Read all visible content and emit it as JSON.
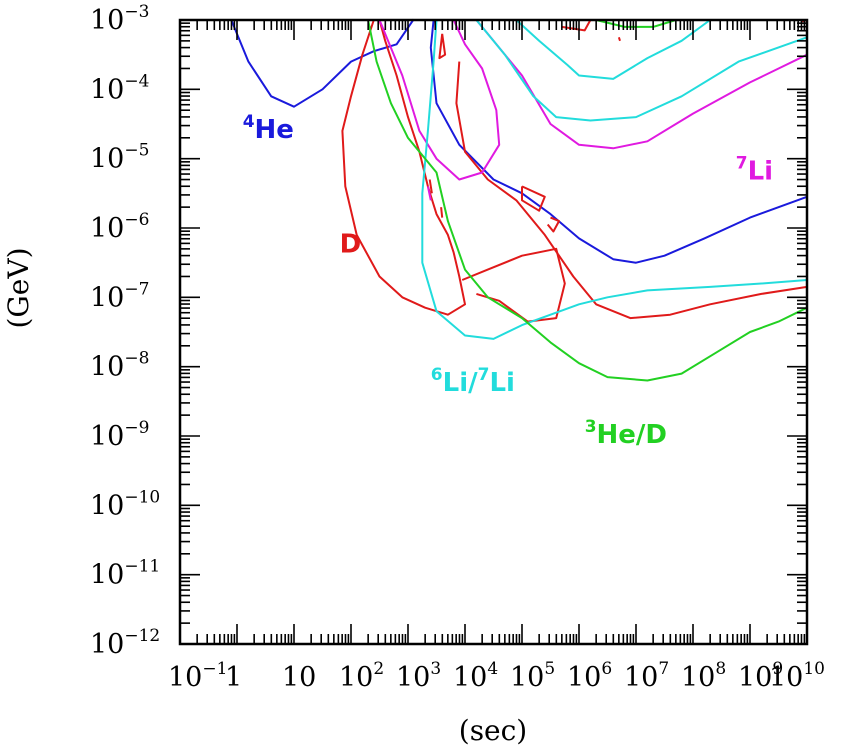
{
  "chart_data": {
    "type": "line",
    "title": "",
    "xlabel": "(sec)",
    "ylabel": "(GeV)",
    "x_scale": "log",
    "y_scale": "log",
    "xlim_exp": [
      -1,
      10
    ],
    "ylim_exp": [
      -12,
      -3
    ],
    "grid": false,
    "x_tick_labels": [
      {
        "exp": -1,
        "base": "10",
        "sup": "−1"
      },
      {
        "exp": 0,
        "base": "1",
        "sup": ""
      },
      {
        "exp": 1,
        "base": "10",
        "sup": ""
      },
      {
        "exp": 2,
        "base": "10",
        "sup": "2"
      },
      {
        "exp": 3,
        "base": "10",
        "sup": "3"
      },
      {
        "exp": 4,
        "base": "10",
        "sup": "4"
      },
      {
        "exp": 5,
        "base": "10",
        "sup": "5"
      },
      {
        "exp": 6,
        "base": "10",
        "sup": "6"
      },
      {
        "exp": 7,
        "base": "10",
        "sup": "7"
      },
      {
        "exp": 8,
        "base": "10",
        "sup": "8"
      },
      {
        "exp": 9,
        "base": "10",
        "sup": "9"
      },
      {
        "exp": 10,
        "base": "10",
        "sup": "10"
      }
    ],
    "y_tick_labels": [
      {
        "exp": -3,
        "base": "10",
        "sup": "−3"
      },
      {
        "exp": -4,
        "base": "10",
        "sup": "−4"
      },
      {
        "exp": -5,
        "base": "10",
        "sup": "−5"
      },
      {
        "exp": -6,
        "base": "10",
        "sup": "−6"
      },
      {
        "exp": -7,
        "base": "10",
        "sup": "−7"
      },
      {
        "exp": -8,
        "base": "10",
        "sup": "−8"
      },
      {
        "exp": -9,
        "base": "10",
        "sup": "−9"
      },
      {
        "exp": -10,
        "base": "10",
        "sup": "−10"
      },
      {
        "exp": -11,
        "base": "10",
        "sup": "−11"
      },
      {
        "exp": -12,
        "base": "10",
        "sup": "−12"
      }
    ],
    "labels": [
      {
        "key": "he4",
        "sup": "4",
        "text": "He",
        "color": "#1a1adc",
        "at": [
          0.1,
          -4.7
        ]
      },
      {
        "key": "d",
        "sup": "",
        "text": "D",
        "color": "#e01a1a",
        "at": [
          1.8,
          -6.35
        ]
      },
      {
        "key": "li7",
        "sup": "7",
        "text": "Li",
        "color": "#e01ae0",
        "at": [
          8.75,
          -5.3
        ]
      },
      {
        "key": "li6li7",
        "sup": "6",
        "text": "Li/",
        "sup2": "7",
        "text2": "Li",
        "color": "#22dcdc",
        "at": [
          3.4,
          -8.35
        ]
      },
      {
        "key": "he3d",
        "sup": "3",
        "text": "He/D",
        "color": "#22d022",
        "at": [
          6.1,
          -9.1
        ]
      }
    ],
    "series": [
      {
        "key": "he4",
        "color": "#1a1adc",
        "paths": [
          [
            [
              -0.1,
              -3.0
            ],
            [
              0.2,
              -3.6
            ],
            [
              0.6,
              -4.1
            ],
            [
              1.0,
              -4.25
            ],
            [
              1.5,
              -4.0
            ],
            [
              2.0,
              -3.6
            ],
            [
              2.4,
              -3.45
            ],
            [
              2.8,
              -3.35
            ],
            [
              3.1,
              -2.99
            ]
          ],
          [
            [
              3.45,
              -3.0
            ],
            [
              3.4,
              -3.4
            ],
            [
              3.5,
              -4.2
            ],
            [
              3.9,
              -4.8
            ],
            [
              4.5,
              -5.3
            ],
            [
              5.0,
              -5.5
            ],
            [
              5.5,
              -5.8
            ],
            [
              6.0,
              -6.15
            ],
            [
              6.6,
              -6.45
            ],
            [
              7.0,
              -6.5
            ],
            [
              7.5,
              -6.4
            ],
            [
              8.2,
              -6.15
            ],
            [
              9.0,
              -5.85
            ],
            [
              10.0,
              -5.55
            ]
          ]
        ]
      },
      {
        "key": "d",
        "color": "#e01a1a",
        "paths": [
          [
            [
              2.4,
              -3.0
            ],
            [
              2.2,
              -3.5
            ],
            [
              2.0,
              -4.1
            ],
            [
              1.85,
              -4.6
            ],
            [
              1.9,
              -5.4
            ],
            [
              2.1,
              -6.1
            ],
            [
              2.5,
              -6.7
            ],
            [
              2.9,
              -7.0
            ],
            [
              3.3,
              -7.15
            ],
            [
              3.7,
              -7.25
            ],
            [
              4.0,
              -7.1
            ],
            [
              3.9,
              -6.7
            ],
            [
              3.8,
              -6.35
            ],
            [
              3.7,
              -6.1
            ],
            [
              3.5,
              -5.8
            ],
            [
              3.35,
              -5.4
            ],
            [
              3.2,
              -4.9
            ],
            [
              3.0,
              -4.4
            ],
            [
              2.8,
              -3.8
            ],
            [
              2.6,
              -3.3
            ],
            [
              2.5,
              -3.0
            ]
          ],
          [
            [
              3.9,
              -3.6
            ],
            [
              3.85,
              -4.2
            ],
            [
              4.0,
              -4.9
            ],
            [
              4.4,
              -5.3
            ],
            [
              4.9,
              -5.6
            ],
            [
              5.4,
              -6.1
            ],
            [
              5.9,
              -6.7
            ],
            [
              6.3,
              -7.1
            ],
            [
              6.9,
              -7.3
            ],
            [
              7.6,
              -7.25
            ],
            [
              8.3,
              -7.1
            ],
            [
              9.2,
              -6.95
            ],
            [
              10.0,
              -6.85
            ]
          ],
          [
            [
              3.95,
              -6.75
            ],
            [
              4.4,
              -6.6
            ],
            [
              5.0,
              -6.4
            ],
            [
              5.6,
              -6.3
            ],
            [
              5.75,
              -6.8
            ],
            [
              5.6,
              -7.3
            ],
            [
              5.1,
              -7.35
            ],
            [
              4.6,
              -7.05
            ],
            [
              4.2,
              -6.95
            ]
          ],
          [
            [
              5.0,
              -5.4
            ],
            [
              5.4,
              -5.55
            ],
            [
              5.3,
              -5.75
            ],
            [
              5.0,
              -5.6
            ],
            [
              5.0,
              -5.4
            ]
          ],
          [
            [
              5.5,
              -5.85
            ],
            [
              5.65,
              -5.9
            ],
            [
              5.55,
              -6.05
            ],
            [
              5.45,
              -5.95
            ]
          ],
          [
            [
              3.6,
              -3.2
            ],
            [
              3.65,
              -3.5
            ],
            [
              3.55,
              -3.55
            ],
            [
              3.6,
              -3.2
            ]
          ],
          [
            [
              5.7,
              -3.1
            ],
            [
              6.1,
              -3.15
            ],
            [
              6.2,
              -3.0
            ]
          ],
          [
            [
              3.38,
              -5.3
            ],
            [
              3.42,
              -5.5
            ]
          ],
          [
            [
              3.58,
              -5.7
            ],
            [
              3.6,
              -5.85
            ]
          ],
          [
            [
              6.7,
              -3.25
            ],
            [
              6.72,
              -3.3
            ]
          ],
          [
            [
              9.9,
              -3.02
            ],
            [
              10.0,
              -3.0
            ]
          ]
        ]
      },
      {
        "key": "li7",
        "color": "#e01ae0",
        "paths": [
          [
            [
              2.5,
              -3.0
            ],
            [
              2.9,
              -3.8
            ],
            [
              3.2,
              -4.6
            ],
            [
              3.5,
              -5.0
            ],
            [
              3.9,
              -5.3
            ],
            [
              4.3,
              -5.2
            ],
            [
              4.6,
              -4.8
            ],
            [
              4.55,
              -4.3
            ],
            [
              4.3,
              -3.7
            ],
            [
              4.0,
              -3.35
            ],
            [
              3.8,
              -3.0
            ]
          ],
          [
            [
              4.2,
              -3.0
            ],
            [
              4.5,
              -3.3
            ],
            [
              5.0,
              -3.8
            ],
            [
              5.5,
              -4.5
            ],
            [
              6.0,
              -4.8
            ],
            [
              6.6,
              -4.85
            ],
            [
              7.2,
              -4.75
            ],
            [
              8.0,
              -4.35
            ],
            [
              9.0,
              -3.9
            ],
            [
              10.0,
              -3.5
            ]
          ],
          [
            [
              3.35,
              -5.4
            ],
            [
              3.4,
              -5.6
            ]
          ]
        ]
      },
      {
        "key": "li6li7",
        "color": "#22dcdc",
        "paths": [
          [
            [
              3.5,
              -3.0
            ],
            [
              3.45,
              -3.6
            ],
            [
              3.35,
              -4.6
            ],
            [
              3.25,
              -5.5
            ],
            [
              3.25,
              -6.5
            ],
            [
              3.5,
              -7.2
            ],
            [
              4.0,
              -7.55
            ],
            [
              4.5,
              -7.6
            ],
            [
              5.0,
              -7.4
            ],
            [
              5.5,
              -7.25
            ],
            [
              6.0,
              -7.1
            ],
            [
              6.5,
              -7.0
            ],
            [
              7.2,
              -6.9
            ],
            [
              8.3,
              -6.85
            ],
            [
              9.2,
              -6.8
            ],
            [
              10.0,
              -6.75
            ]
          ],
          [
            [
              4.2,
              -3.0
            ],
            [
              4.7,
              -3.5
            ],
            [
              5.2,
              -4.1
            ],
            [
              5.6,
              -4.4
            ],
            [
              6.2,
              -4.45
            ],
            [
              7.0,
              -4.4
            ],
            [
              7.8,
              -4.1
            ],
            [
              8.8,
              -3.6
            ],
            [
              10.0,
              -3.25
            ]
          ],
          [
            [
              4.9,
              -3.0
            ],
            [
              5.3,
              -3.3
            ],
            [
              5.8,
              -3.65
            ],
            [
              6.0,
              -3.8
            ],
            [
              6.6,
              -3.85
            ],
            [
              7.2,
              -3.55
            ],
            [
              7.8,
              -3.3
            ],
            [
              8.3,
              -3.0
            ]
          ]
        ]
      },
      {
        "key": "he3d",
        "color": "#22d022",
        "paths": [
          [
            [
              2.3,
              -3.0
            ],
            [
              2.45,
              -3.6
            ],
            [
              2.7,
              -4.2
            ],
            [
              3.0,
              -4.7
            ],
            [
              3.5,
              -5.2
            ],
            [
              3.7,
              -5.9
            ],
            [
              4.0,
              -6.6
            ],
            [
              4.4,
              -7.0
            ],
            [
              5.0,
              -7.3
            ],
            [
              5.5,
              -7.65
            ],
            [
              6.0,
              -7.95
            ],
            [
              6.5,
              -8.15
            ],
            [
              7.2,
              -8.2
            ],
            [
              7.8,
              -8.1
            ],
            [
              8.4,
              -7.8
            ],
            [
              9.0,
              -7.5
            ],
            [
              9.5,
              -7.35
            ],
            [
              10.0,
              -7.15
            ]
          ],
          [
            [
              6.3,
              -3.0
            ],
            [
              6.8,
              -3.1
            ],
            [
              7.3,
              -3.1
            ],
            [
              7.7,
              -3.0
            ]
          ]
        ]
      }
    ]
  }
}
